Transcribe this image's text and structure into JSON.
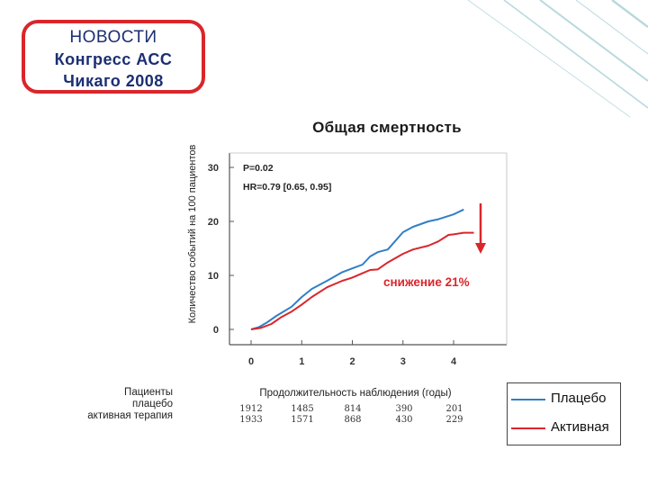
{
  "news": {
    "line1": "НОВОСТИ",
    "line2": "Конгресс АСС",
    "line3": "Чикаго 2008"
  },
  "colors": {
    "placebo": "#2f7fc6",
    "active": "#d9262b",
    "box_border": "#d9262b",
    "news_text": "#1b2f73",
    "bg_teal": "#7fb9c4"
  },
  "patients_label": {
    "line1": "Пациенты",
    "line2": "плацебо",
    "line3": "активная терапия"
  },
  "chart_data": {
    "type": "line",
    "title": "Общая смертность",
    "ylabel": "Количество событий на 100 пациентов",
    "xlabel": "Продолжительность наблюдения (годы)",
    "xlim": [
      -0.1,
      5.1
    ],
    "ylim": [
      -1,
      32
    ],
    "x_ticks": [
      "0",
      "1",
      "2",
      "3",
      "4"
    ],
    "y_ticks": [
      "0",
      "10",
      "20",
      "30"
    ],
    "grid": false,
    "annotations": {
      "p_value": "P=0.02",
      "hr": "HR=0.79 [0.65, 0.95]",
      "reduction": "снижение 21%"
    },
    "series": [
      {
        "name": "Плацебо",
        "x": [
          0,
          0.15,
          0.3,
          0.5,
          0.8,
          1.0,
          1.2,
          1.5,
          1.8,
          2.0,
          2.2,
          2.35,
          2.5,
          2.7,
          3.0,
          3.2,
          3.5,
          3.7,
          4.0,
          4.2
        ],
        "y": [
          0,
          0.4,
          1.2,
          2.5,
          4.2,
          6.0,
          7.5,
          9.0,
          10.6,
          11.3,
          12.0,
          13.5,
          14.3,
          14.8,
          18.0,
          19.0,
          20.0,
          20.4,
          21.3,
          22.2
        ]
      },
      {
        "name": "Активная",
        "x": [
          0,
          0.2,
          0.4,
          0.6,
          0.8,
          1.0,
          1.2,
          1.5,
          1.8,
          2.0,
          2.2,
          2.35,
          2.5,
          2.7,
          3.0,
          3.2,
          3.5,
          3.7,
          3.9,
          4.0,
          4.2,
          4.4
        ],
        "y": [
          0,
          0.3,
          1.0,
          2.3,
          3.3,
          4.6,
          6.0,
          7.8,
          9.0,
          9.6,
          10.4,
          11.0,
          11.1,
          12.4,
          14.0,
          14.8,
          15.5,
          16.3,
          17.5,
          17.6,
          17.9,
          17.9
        ]
      }
    ],
    "numbers_at_risk": {
      "placebo": [
        "1912",
        "1485",
        "814",
        "390",
        "201"
      ],
      "active": [
        "1933",
        "1571",
        "868",
        "430",
        "229"
      ]
    }
  },
  "legend": {
    "placebo_label": "Плацебо",
    "active_label": "Активная"
  }
}
